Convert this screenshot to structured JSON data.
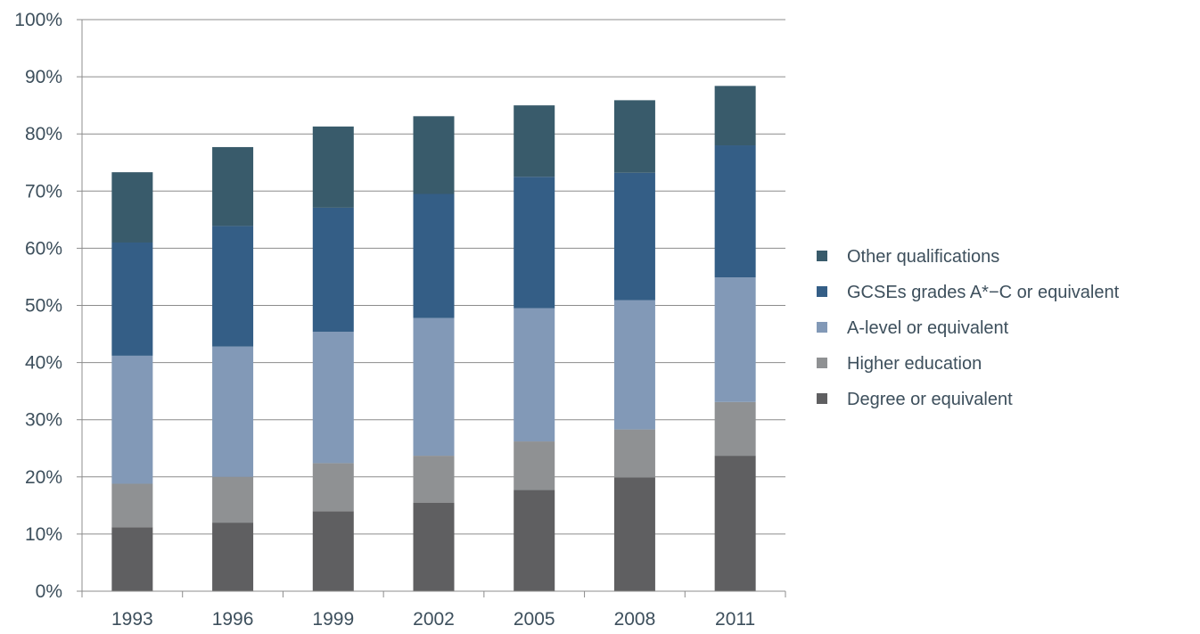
{
  "chart_data": {
    "type": "bar",
    "stacked": true,
    "categories": [
      "1993",
      "1996",
      "1999",
      "2002",
      "2005",
      "2008",
      "2011"
    ],
    "series": [
      {
        "name": "Degree or equivalent",
        "color": "#5f5f61",
        "values": [
          11.2,
          12.0,
          14.0,
          15.5,
          17.7,
          19.9,
          23.7
        ]
      },
      {
        "name": "Higher education",
        "color": "#8f9193",
        "values": [
          7.6,
          8.0,
          8.4,
          8.2,
          8.5,
          8.4,
          9.4
        ]
      },
      {
        "name": "A-level or equivalent",
        "color": "#8299b7",
        "values": [
          22.4,
          22.8,
          23.0,
          24.1,
          23.3,
          22.6,
          21.8
        ]
      },
      {
        "name": "GCSEs grades A*−C or equivalent",
        "color": "#345e86",
        "values": [
          19.8,
          21.1,
          21.7,
          21.7,
          23.0,
          22.3,
          23.1
        ]
      },
      {
        "name": "Other qualifications",
        "color": "#395b6b",
        "values": [
          12.3,
          13.8,
          14.2,
          13.6,
          12.5,
          12.7,
          10.4
        ]
      }
    ],
    "y_ticks": [
      "0%",
      "10%",
      "20%",
      "30%",
      "40%",
      "50%",
      "60%",
      "70%",
      "80%",
      "90%",
      "100%"
    ],
    "ylim": [
      0,
      100
    ],
    "grid": true,
    "legend_position": "right",
    "legend_order": [
      "Other qualifications",
      "GCSEs grades A*−C or equivalent",
      "A-level or equivalent",
      "Higher education",
      "Degree or equivalent"
    ]
  }
}
